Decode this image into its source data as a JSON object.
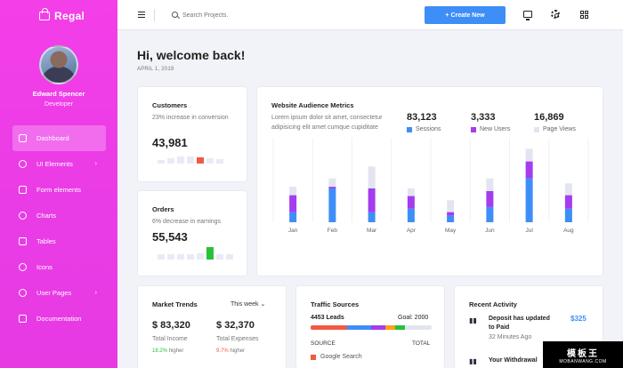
{
  "brand": "Regal",
  "user": {
    "name": "Edward Spencer",
    "role": "Developer"
  },
  "nav": [
    {
      "label": "Dashboard",
      "active": true,
      "chevron": false
    },
    {
      "label": "UI Elements",
      "chevron": true
    },
    {
      "label": "Form elements",
      "chevron": false
    },
    {
      "label": "Charts",
      "chevron": false
    },
    {
      "label": "Tables",
      "chevron": false
    },
    {
      "label": "Icons",
      "chevron": false
    },
    {
      "label": "User Pages",
      "chevron": true
    },
    {
      "label": "Documentation",
      "chevron": false
    }
  ],
  "header": {
    "search_placeholder": "Search Projects.",
    "create_label": "+ Create New"
  },
  "welcome": {
    "title": "Hi, welcome back!",
    "date": "APRIL 1, 2019"
  },
  "customers": {
    "title": "Customers",
    "subtitle": "23% increase in conversion",
    "value": "43,981",
    "bars": [
      0.3,
      0.45,
      0.6,
      0.55,
      0.5,
      0.45,
      0.35
    ],
    "highlight_index": 4,
    "highlight_color": "#f15a42"
  },
  "orders": {
    "title": "Orders",
    "subtitle": "6% decrease in earnings",
    "value": "55,543",
    "bars": [
      0.35,
      0.35,
      0.35,
      0.35,
      0.45,
      0.9,
      0.4,
      0.35
    ],
    "highlight_index": 5,
    "highlight_color": "#26c23a"
  },
  "audience": {
    "title": "Website Audience Metrics",
    "description": "Lorem ipsum dolor sit amet, consectetur adipisicing elit amet cumque cupiditate",
    "metrics": [
      {
        "value": "83,123",
        "label": "Sessions",
        "color": "#3e8ef7"
      },
      {
        "value": "3,333",
        "label": "New Users",
        "color": "#a43cef"
      },
      {
        "value": "16,869",
        "label": "Page Views",
        "color": "#e2e5ef"
      }
    ]
  },
  "chart_data": {
    "type": "bar",
    "categories": [
      "Jan",
      "Feb",
      "Mar",
      "Apr",
      "May",
      "Jun",
      "Jul",
      "Aug"
    ],
    "series": [
      {
        "name": "Sessions",
        "values": [
          12,
          40,
          12,
          16,
          8,
          18,
          52,
          16
        ]
      },
      {
        "name": "New Users",
        "values": [
          20,
          2,
          28,
          15,
          4,
          19,
          20,
          16
        ]
      },
      {
        "name": "Page Views",
        "values": [
          10,
          10,
          26,
          9,
          14,
          15,
          15,
          14
        ]
      }
    ],
    "colors": [
      "#3e8ef7",
      "#a43cef",
      "#e2e5ef"
    ],
    "ylim": [
      0,
      100
    ],
    "grid": false
  },
  "market": {
    "title": "Market Trends",
    "period": "This week",
    "income": {
      "value": "$ 83,320",
      "label": "Total Income",
      "change": "18.2%",
      "change_label": "higher",
      "change_color": "#26c23a"
    },
    "expenses": {
      "value": "$ 32,370",
      "label": "Total Expenses",
      "change": "9.7%",
      "change_label": "higher",
      "change_color": "#f15a42"
    }
  },
  "traffic": {
    "title": "Traffic Sources",
    "leads": "4453 Leads",
    "goal": "Goal: 2000",
    "segments": [
      {
        "color": "#f15a42",
        "value": 30
      },
      {
        "color": "#3e8ef7",
        "value": 20
      },
      {
        "color": "#a43cef",
        "value": 12
      },
      {
        "color": "#ff9f1a",
        "value": 8
      },
      {
        "color": "#26c23a",
        "value": 8
      },
      {
        "color": "#e2e5ef",
        "value": 22
      }
    ],
    "col_source": "SOURCE",
    "col_total": "TOTAL",
    "row1": {
      "label": "Google Search",
      "color": "#f15a42"
    }
  },
  "activity": {
    "title": "Recent Activity",
    "items": [
      {
        "title": "Deposit has updated to Paid",
        "time": "32 Minutes Ago",
        "amount": "$325"
      },
      {
        "title": "Your Withdrawal",
        "time": "",
        "amount": ""
      }
    ]
  },
  "watermark": {
    "line1": "模板王",
    "line2": "MOBANWANG.COM"
  }
}
